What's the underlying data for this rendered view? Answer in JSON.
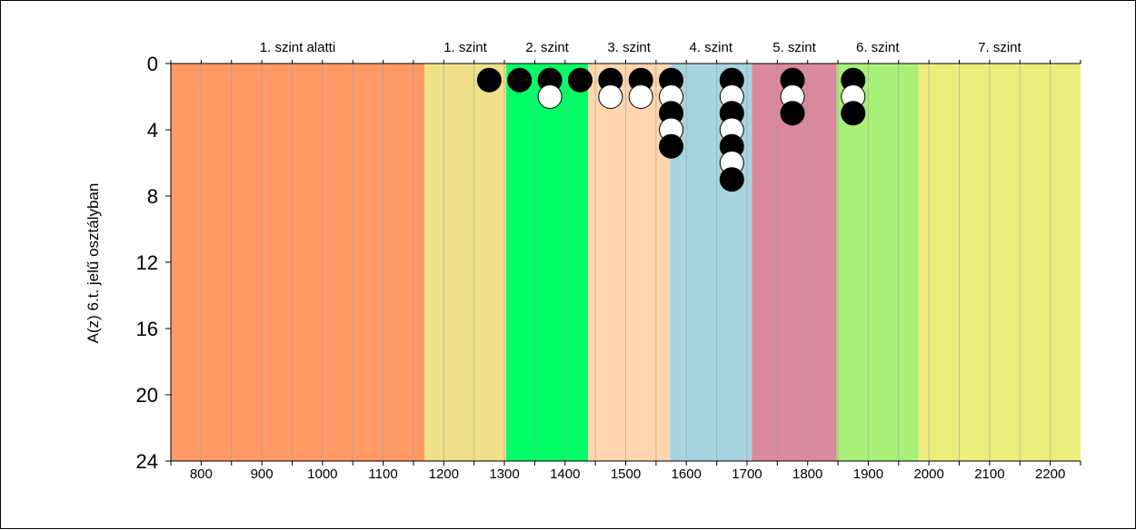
{
  "chart_data": {
    "type": "scatter",
    "title": "",
    "xlabel": "",
    "ylabel": "A(z) 6.t. jelű osztályban",
    "xlim": [
      750,
      2250
    ],
    "ylim": [
      0,
      24
    ],
    "y_inverted": true,
    "grid": "vertical lines every 50",
    "x_ticks": [
      800,
      900,
      1000,
      1100,
      1200,
      1300,
      1400,
      1500,
      1600,
      1700,
      1800,
      1900,
      2000,
      2100,
      2200
    ],
    "y_ticks": [
      0,
      4,
      8,
      12,
      16,
      20,
      24
    ],
    "bands": [
      {
        "label": "1. szint alatti",
        "from": 750,
        "to": 1168,
        "color": "#FF9966"
      },
      {
        "label": "1. szint",
        "from": 1168,
        "to": 1303,
        "color": "#F0E089"
      },
      {
        "label": "2. szint",
        "from": 1303,
        "to": 1438,
        "color": "#00FF66"
      },
      {
        "label": "3. szint",
        "from": 1438,
        "to": 1573,
        "color": "#FFD6AD"
      },
      {
        "label": "4. szint",
        "from": 1573,
        "to": 1708,
        "color": "#A8D4E0"
      },
      {
        "label": "5. szint",
        "from": 1708,
        "to": 1848,
        "color": "#D98A9C"
      },
      {
        "label": "6. szint",
        "from": 1848,
        "to": 1983,
        "color": "#A8F078"
      },
      {
        "label": "7. szint",
        "from": 1983,
        "to": 2250,
        "color": "#EDED7E"
      }
    ],
    "points": [
      {
        "x": 1275,
        "y": 1,
        "fill": "black"
      },
      {
        "x": 1325,
        "y": 1,
        "fill": "black"
      },
      {
        "x": 1375,
        "y": 1,
        "fill": "black"
      },
      {
        "x": 1375,
        "y": 2,
        "fill": "white"
      },
      {
        "x": 1425,
        "y": 1,
        "fill": "black"
      },
      {
        "x": 1475,
        "y": 1,
        "fill": "black"
      },
      {
        "x": 1475,
        "y": 2,
        "fill": "white"
      },
      {
        "x": 1525,
        "y": 1,
        "fill": "black"
      },
      {
        "x": 1525,
        "y": 2,
        "fill": "white"
      },
      {
        "x": 1575,
        "y": 1,
        "fill": "black"
      },
      {
        "x": 1575,
        "y": 2,
        "fill": "white"
      },
      {
        "x": 1575,
        "y": 3,
        "fill": "black"
      },
      {
        "x": 1575,
        "y": 4,
        "fill": "white"
      },
      {
        "x": 1575,
        "y": 5,
        "fill": "black"
      },
      {
        "x": 1675,
        "y": 1,
        "fill": "black"
      },
      {
        "x": 1675,
        "y": 2,
        "fill": "white"
      },
      {
        "x": 1675,
        "y": 3,
        "fill": "black"
      },
      {
        "x": 1675,
        "y": 4,
        "fill": "white"
      },
      {
        "x": 1675,
        "y": 5,
        "fill": "black"
      },
      {
        "x": 1675,
        "y": 6,
        "fill": "white"
      },
      {
        "x": 1675,
        "y": 7,
        "fill": "black"
      },
      {
        "x": 1775,
        "y": 1,
        "fill": "black"
      },
      {
        "x": 1775,
        "y": 2,
        "fill": "white"
      },
      {
        "x": 1775,
        "y": 3,
        "fill": "black"
      },
      {
        "x": 1875,
        "y": 1,
        "fill": "black"
      },
      {
        "x": 1875,
        "y": 2,
        "fill": "white"
      },
      {
        "x": 1875,
        "y": 3,
        "fill": "black"
      }
    ]
  }
}
